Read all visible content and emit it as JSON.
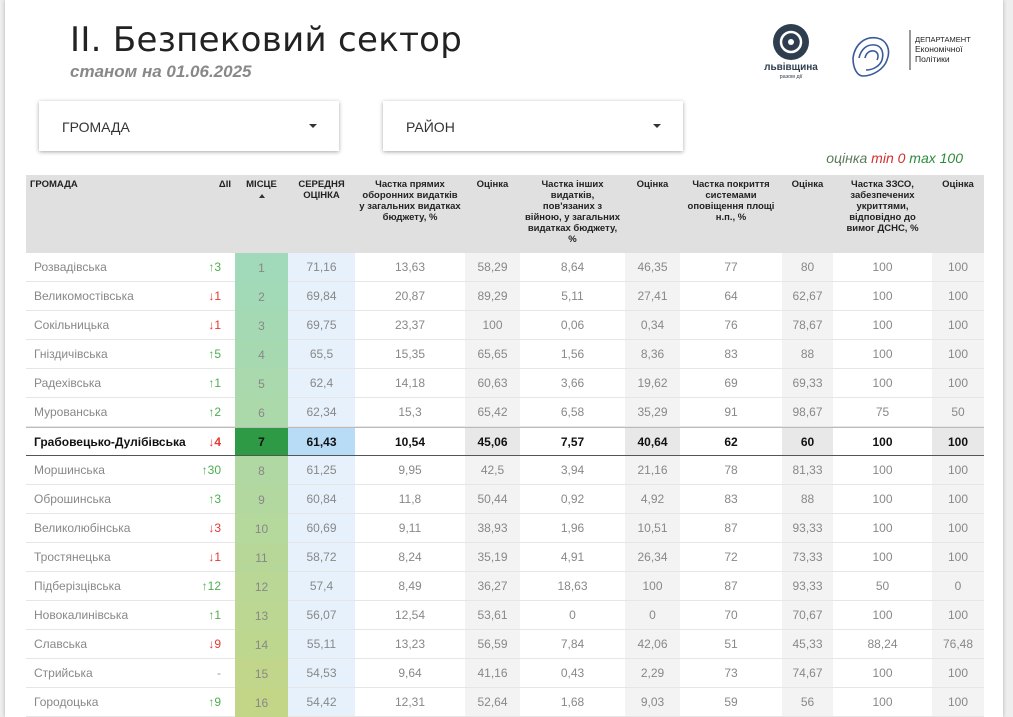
{
  "header": {
    "title": "II. Безпековий сектор",
    "subtitle": "станом на 01.06.2025",
    "logo_left": {
      "name": "львівщина",
      "tagline": "разом дії"
    },
    "logo_right": {
      "lines": [
        "ДЕПАРТАМЕНТ",
        "Економічної",
        "Політики"
      ]
    }
  },
  "filters": [
    {
      "label": "ГРОМАДА"
    },
    {
      "label": "РАЙОН"
    }
  ],
  "legend": {
    "label": "оцінка",
    "min": "min 0",
    "max": "max 100",
    "label_color": "#5b7a5b",
    "min_color": "#d32f2f",
    "max_color": "#2e8b3e"
  },
  "table": {
    "columns": [
      "ГРОМАДА",
      "ΔII",
      "МІСЦЕ",
      "СЕРЕДНЯ ОЦІНКА",
      "Частка прямих оборонних видатків у загальних видатках бюджету, %",
      "Оцінка",
      "Частка інших видатків, пов'язаних з війною, у загальних видатках бюджету, %",
      "Оцінка",
      "Частка покриття системами оповіщення площі н.п., %",
      "Оцінка",
      "Частка ЗЗСО, забезпечених укриттями, відповідно до вимог ДСНС, %",
      "Оцінка"
    ],
    "highlight_row": 6,
    "up_color": "#4caf50",
    "down_color": "#e53935",
    "flat_color": "#999999",
    "rows": [
      [
        "Розвадівська",
        "↑3",
        "1",
        "71,16",
        "13,63",
        "58,29",
        "8,64",
        "46,35",
        "77",
        "80",
        "100",
        "100"
      ],
      [
        "Великомостівська",
        "↓1",
        "2",
        "69,84",
        "20,87",
        "89,29",
        "5,11",
        "27,41",
        "64",
        "62,67",
        "100",
        "100"
      ],
      [
        "Сокільницька",
        "↓1",
        "3",
        "69,75",
        "23,37",
        "100",
        "0,06",
        "0,34",
        "76",
        "78,67",
        "100",
        "100"
      ],
      [
        "Гніздичівська",
        "↑5",
        "4",
        "65,5",
        "15,35",
        "65,65",
        "1,56",
        "8,36",
        "83",
        "88",
        "100",
        "100"
      ],
      [
        "Радехівська",
        "↑1",
        "5",
        "62,4",
        "14,18",
        "60,63",
        "3,66",
        "19,62",
        "69",
        "69,33",
        "100",
        "100"
      ],
      [
        "Мурованська",
        "↑2",
        "6",
        "62,34",
        "15,3",
        "65,42",
        "6,58",
        "35,29",
        "91",
        "98,67",
        "75",
        "50"
      ],
      [
        "Грабовецько-Дулібівська",
        "↓4",
        "7",
        "61,43",
        "10,54",
        "45,06",
        "7,57",
        "40,64",
        "62",
        "60",
        "100",
        "100"
      ],
      [
        "Моршинська",
        "↑30",
        "8",
        "61,25",
        "9,95",
        "42,5",
        "3,94",
        "21,16",
        "78",
        "81,33",
        "100",
        "100"
      ],
      [
        "Оброшинська",
        "↑3",
        "9",
        "60,84",
        "11,8",
        "50,44",
        "0,92",
        "4,92",
        "83",
        "88",
        "100",
        "100"
      ],
      [
        "Великолюбінська",
        "↓3",
        "10",
        "60,69",
        "9,11",
        "38,93",
        "1,96",
        "10,51",
        "87",
        "93,33",
        "100",
        "100"
      ],
      [
        "Тростянецька",
        "↓1",
        "11",
        "58,72",
        "8,24",
        "35,19",
        "4,91",
        "26,34",
        "72",
        "73,33",
        "100",
        "100"
      ],
      [
        "Підберізцівська",
        "↑12",
        "12",
        "57,4",
        "8,49",
        "36,27",
        "18,63",
        "100",
        "87",
        "93,33",
        "50",
        "0"
      ],
      [
        "Новокалинівська",
        "↑1",
        "13",
        "56,07",
        "12,54",
        "53,61",
        "0",
        "0",
        "70",
        "70,67",
        "100",
        "100"
      ],
      [
        "Славська",
        "↓9",
        "14",
        "55,11",
        "13,23",
        "56,59",
        "7,84",
        "42,06",
        "51",
        "45,33",
        "88,24",
        "76,48"
      ],
      [
        "Стрийська",
        "-",
        "15",
        "54,53",
        "9,64",
        "41,16",
        "0,43",
        "2,29",
        "73",
        "74,67",
        "100",
        "100"
      ],
      [
        "Городоцька",
        "↑9",
        "16",
        "54,42",
        "12,31",
        "52,64",
        "1,68",
        "9,03",
        "59",
        "56",
        "100",
        "100"
      ]
    ]
  }
}
